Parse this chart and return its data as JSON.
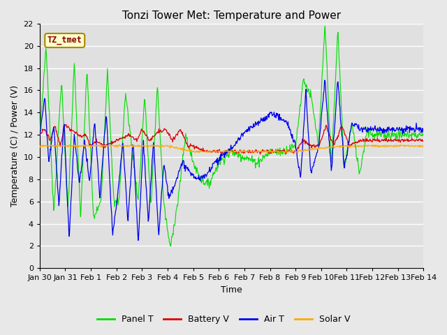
{
  "title": "Tonzi Tower Met: Temperature and Power",
  "xlabel": "Time",
  "ylabel": "Temperature (C) / Power (V)",
  "annotation": "TZ_tmet",
  "ylim": [
    0,
    22
  ],
  "yticks": [
    0,
    2,
    4,
    6,
    8,
    10,
    12,
    14,
    16,
    18,
    20,
    22
  ],
  "xtick_labels": [
    "Jan 30",
    "Jan 31",
    "Feb 1",
    "Feb 2",
    "Feb 3",
    "Feb 4",
    "Feb 5",
    "Feb 6",
    "Feb 7",
    "Feb 8",
    "Feb 9",
    "Feb 10",
    "Feb 11",
    "Feb 12",
    "Feb 13",
    "Feb 14"
  ],
  "legend_labels": [
    "Panel T",
    "Battery V",
    "Air T",
    "Solar V"
  ],
  "legend_colors": [
    "#00dd00",
    "#dd0000",
    "#0000ee",
    "#ffaa00"
  ],
  "bg_color": "#e0e0e0",
  "grid_color": "#ffffff",
  "fig_bg": "#e8e8e8",
  "annotation_bg": "#ffffcc",
  "annotation_text_color": "#880000",
  "annotation_border_color": "#aa8800",
  "title_fontsize": 11,
  "axis_label_fontsize": 9,
  "tick_fontsize": 8
}
